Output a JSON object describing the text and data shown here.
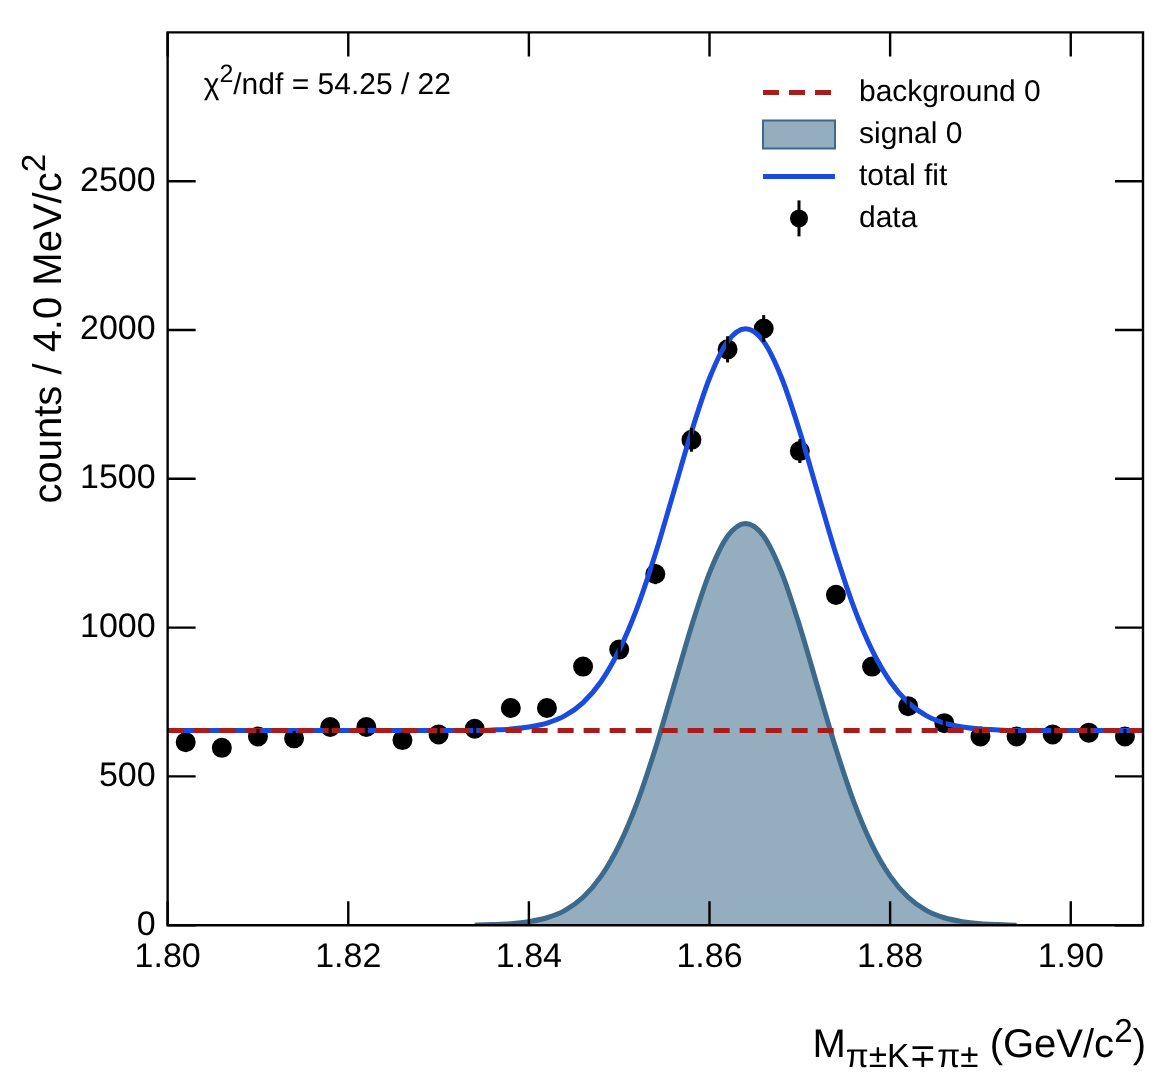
{
  "chart_data": {
    "type": "scatter",
    "xlabel": "M$_{π±K∓π±}$ (GeV/c$^{2}$)",
    "ylabel": "counts / 4.0 MeV/c$^{2}$",
    "annotations": [
      "χ$^{2}$/ndf = 54.25 / 22"
    ],
    "xlim": [
      1.8,
      1.908
    ],
    "ylim": [
      0,
      3000
    ],
    "xticks": [
      {
        "value": 1.8,
        "label": "1.80"
      },
      {
        "value": 1.82,
        "label": "1.82"
      },
      {
        "value": 1.84,
        "label": "1.84"
      },
      {
        "value": 1.86,
        "label": "1.86"
      },
      {
        "value": 1.88,
        "label": "1.88"
      },
      {
        "value": 1.9,
        "label": "1.90"
      }
    ],
    "yticks": [
      0,
      500,
      1000,
      1500,
      2000,
      2500
    ],
    "legend": "top right",
    "series": [
      {
        "name": "background 0",
        "type": "line",
        "line_style": "dashed",
        "marker": "none",
        "color": "#a81c1c",
        "x": [
          1.8,
          1.908
        ],
        "values": [
          654,
          654
        ]
      },
      {
        "name": "signal 0",
        "type": "area",
        "marker": "none",
        "color": "#3d6a8a",
        "x": [
          1.834,
          1.836,
          1.838,
          1.84,
          1.842,
          1.844,
          1.846,
          1.848,
          1.85,
          1.852,
          1.854,
          1.856,
          1.858,
          1.86,
          1.862,
          1.864,
          1.866,
          1.868,
          1.87,
          1.872,
          1.874,
          1.876,
          1.878,
          1.88,
          1.882,
          1.884,
          1.886,
          1.888,
          1.89,
          1.892,
          1.894
        ],
        "values": [
          0,
          2,
          5,
          12,
          25,
          50,
          94,
          165,
          270,
          413,
          593,
          798,
          1004,
          1184,
          1307,
          1350,
          1307,
          1184,
          1004,
          798,
          593,
          413,
          270,
          165,
          94,
          50,
          25,
          12,
          5,
          2,
          0
        ]
      },
      {
        "name": "total fit",
        "type": "line",
        "line_style": "solid",
        "marker": "none",
        "color": "#1a4be0",
        "x": [
          1.8,
          1.834,
          1.836,
          1.838,
          1.84,
          1.842,
          1.844,
          1.846,
          1.848,
          1.85,
          1.852,
          1.854,
          1.856,
          1.858,
          1.86,
          1.862,
          1.864,
          1.866,
          1.868,
          1.87,
          1.872,
          1.874,
          1.876,
          1.878,
          1.88,
          1.882,
          1.884,
          1.886,
          1.888,
          1.89,
          1.892,
          1.894,
          1.908
        ],
        "values": [
          654,
          654,
          656,
          659,
          666,
          679,
          704,
          748,
          819,
          924,
          1067,
          1247,
          1452,
          1658,
          1838,
          1961,
          2004,
          1961,
          1838,
          1658,
          1452,
          1247,
          1067,
          924,
          819,
          748,
          704,
          679,
          666,
          659,
          656,
          654,
          654
        ]
      },
      {
        "name": "data",
        "type": "scatter",
        "marker": "circle",
        "color": "#000000",
        "x": [
          1.802,
          1.806,
          1.81,
          1.814,
          1.818,
          1.822,
          1.826,
          1.83,
          1.834,
          1.838,
          1.842,
          1.846,
          1.85,
          1.854,
          1.858,
          1.862,
          1.866,
          1.87,
          1.874,
          1.878,
          1.882,
          1.886,
          1.89,
          1.894,
          1.898,
          1.902,
          1.906
        ],
        "values": [
          615,
          596,
          634,
          628,
          666,
          666,
          622,
          641,
          660,
          730,
          730,
          869,
          926,
          1180,
          1631,
          1935,
          2005,
          1593,
          1110,
          869,
          736,
          679,
          634,
          634,
          641,
          647,
          634
        ],
        "errors": [
          25,
          24,
          25,
          25,
          26,
          26,
          25,
          25,
          26,
          27,
          27,
          29,
          30,
          34,
          40,
          44,
          45,
          40,
          33,
          29,
          27,
          26,
          25,
          25,
          25,
          25,
          25
        ]
      }
    ]
  }
}
